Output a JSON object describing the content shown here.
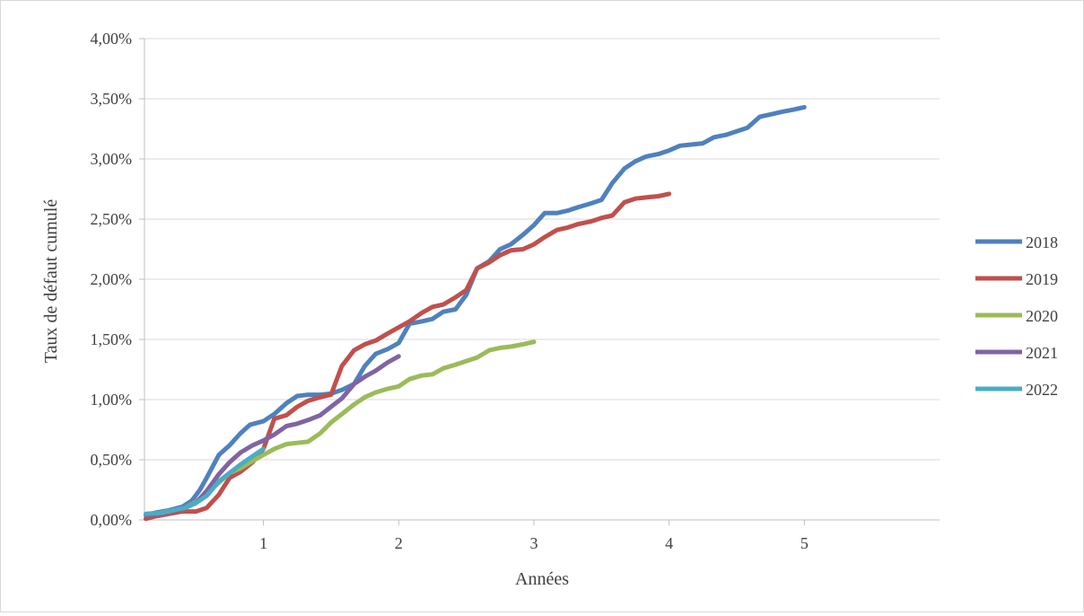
{
  "chart_data": {
    "type": "line",
    "title": "",
    "xlabel": "Années",
    "ylabel": "Taux de défaut cumulé",
    "xlim": [
      0.12,
      6.0
    ],
    "ylim": [
      0,
      0.04
    ],
    "x_ticks": [
      1,
      2,
      3,
      4,
      5
    ],
    "x_tick_labels": [
      "1",
      "2",
      "3",
      "4",
      "5"
    ],
    "y_ticks": [
      0,
      0.005,
      0.01,
      0.015,
      0.02,
      0.025,
      0.03,
      0.035,
      0.04
    ],
    "y_tick_labels": [
      "0,00%",
      "0,50%",
      "1,00%",
      "1,50%",
      "2,00%",
      "2,50%",
      "3,00%",
      "3,50%",
      "4,00%"
    ],
    "grid": "horizontal",
    "legend_position": "right",
    "series": [
      {
        "name": "2018",
        "color": "#4f81bd",
        "points": [
          [
            0.13,
            0.0004
          ],
          [
            0.2,
            0.0006
          ],
          [
            0.3,
            0.0008
          ],
          [
            0.4,
            0.0011
          ],
          [
            0.47,
            0.0016
          ],
          [
            0.53,
            0.0025
          ],
          [
            0.58,
            0.0035
          ],
          [
            0.67,
            0.0054
          ],
          [
            0.75,
            0.0062
          ],
          [
            0.83,
            0.0072
          ],
          [
            0.9,
            0.0079
          ],
          [
            1.0,
            0.0082
          ],
          [
            1.08,
            0.0088
          ],
          [
            1.17,
            0.0097
          ],
          [
            1.25,
            0.0103
          ],
          [
            1.33,
            0.0104
          ],
          [
            1.42,
            0.0104
          ],
          [
            1.5,
            0.0105
          ],
          [
            1.58,
            0.0108
          ],
          [
            1.67,
            0.0113
          ],
          [
            1.75,
            0.0128
          ],
          [
            1.83,
            0.0138
          ],
          [
            1.92,
            0.0142
          ],
          [
            2.0,
            0.0147
          ],
          [
            2.08,
            0.0163
          ],
          [
            2.17,
            0.0165
          ],
          [
            2.25,
            0.0167
          ],
          [
            2.33,
            0.0173
          ],
          [
            2.42,
            0.0175
          ],
          [
            2.5,
            0.0187
          ],
          [
            2.58,
            0.0209
          ],
          [
            2.67,
            0.0215
          ],
          [
            2.75,
            0.0225
          ],
          [
            2.83,
            0.0229
          ],
          [
            2.92,
            0.0237
          ],
          [
            3.0,
            0.0245
          ],
          [
            3.08,
            0.0255
          ],
          [
            3.17,
            0.0255
          ],
          [
            3.25,
            0.0257
          ],
          [
            3.33,
            0.026
          ],
          [
            3.42,
            0.0263
          ],
          [
            3.5,
            0.0266
          ],
          [
            3.58,
            0.028
          ],
          [
            3.67,
            0.0292
          ],
          [
            3.75,
            0.0298
          ],
          [
            3.83,
            0.0302
          ],
          [
            3.92,
            0.0304
          ],
          [
            4.0,
            0.0307
          ],
          [
            4.08,
            0.0311
          ],
          [
            4.17,
            0.0312
          ],
          [
            4.25,
            0.0313
          ],
          [
            4.33,
            0.0318
          ],
          [
            4.42,
            0.032
          ],
          [
            4.5,
            0.0323
          ],
          [
            4.58,
            0.0326
          ],
          [
            4.67,
            0.0335
          ],
          [
            4.75,
            0.0337
          ],
          [
            4.83,
            0.0339
          ],
          [
            4.92,
            0.0341
          ],
          [
            5.0,
            0.0343
          ]
        ]
      },
      {
        "name": "2019",
        "color": "#c0504d",
        "points": [
          [
            0.13,
            0.0001
          ],
          [
            0.2,
            0.0003
          ],
          [
            0.3,
            0.0005
          ],
          [
            0.4,
            0.0007
          ],
          [
            0.5,
            0.0007
          ],
          [
            0.58,
            0.001
          ],
          [
            0.67,
            0.0021
          ],
          [
            0.75,
            0.0035
          ],
          [
            0.83,
            0.004
          ],
          [
            0.92,
            0.0048
          ],
          [
            1.0,
            0.0059
          ],
          [
            1.08,
            0.0084
          ],
          [
            1.17,
            0.0087
          ],
          [
            1.25,
            0.0094
          ],
          [
            1.33,
            0.0099
          ],
          [
            1.42,
            0.0102
          ],
          [
            1.5,
            0.0104
          ],
          [
            1.58,
            0.0128
          ],
          [
            1.67,
            0.0141
          ],
          [
            1.75,
            0.0146
          ],
          [
            1.83,
            0.0149
          ],
          [
            1.92,
            0.0155
          ],
          [
            2.0,
            0.016
          ],
          [
            2.08,
            0.0165
          ],
          [
            2.17,
            0.0172
          ],
          [
            2.25,
            0.0177
          ],
          [
            2.33,
            0.0179
          ],
          [
            2.42,
            0.0185
          ],
          [
            2.5,
            0.0191
          ],
          [
            2.58,
            0.0209
          ],
          [
            2.67,
            0.0214
          ],
          [
            2.75,
            0.022
          ],
          [
            2.83,
            0.0224
          ],
          [
            2.92,
            0.0225
          ],
          [
            3.0,
            0.0229
          ],
          [
            3.08,
            0.0235
          ],
          [
            3.17,
            0.0241
          ],
          [
            3.25,
            0.0243
          ],
          [
            3.33,
            0.0246
          ],
          [
            3.42,
            0.0248
          ],
          [
            3.5,
            0.0251
          ],
          [
            3.58,
            0.0253
          ],
          [
            3.67,
            0.0264
          ],
          [
            3.75,
            0.0267
          ],
          [
            3.83,
            0.0268
          ],
          [
            3.92,
            0.0269
          ],
          [
            4.0,
            0.0271
          ]
        ]
      },
      {
        "name": "2020",
        "color": "#9bbb59",
        "points": [
          [
            0.13,
            0.0004
          ],
          [
            0.25,
            0.0006
          ],
          [
            0.33,
            0.0008
          ],
          [
            0.42,
            0.001
          ],
          [
            0.5,
            0.0015
          ],
          [
            0.58,
            0.0022
          ],
          [
            0.67,
            0.0031
          ],
          [
            0.75,
            0.0039
          ],
          [
            0.83,
            0.0043
          ],
          [
            0.92,
            0.0049
          ],
          [
            1.0,
            0.0054
          ],
          [
            1.08,
            0.0059
          ],
          [
            1.17,
            0.0063
          ],
          [
            1.25,
            0.0064
          ],
          [
            1.33,
            0.0065
          ],
          [
            1.42,
            0.0072
          ],
          [
            1.5,
            0.0081
          ],
          [
            1.58,
            0.0088
          ],
          [
            1.67,
            0.0096
          ],
          [
            1.75,
            0.0102
          ],
          [
            1.83,
            0.0106
          ],
          [
            1.92,
            0.0109
          ],
          [
            2.0,
            0.0111
          ],
          [
            2.08,
            0.0117
          ],
          [
            2.17,
            0.012
          ],
          [
            2.25,
            0.0121
          ],
          [
            2.33,
            0.0126
          ],
          [
            2.42,
            0.0129
          ],
          [
            2.5,
            0.0132
          ],
          [
            2.58,
            0.0135
          ],
          [
            2.67,
            0.0141
          ],
          [
            2.75,
            0.0143
          ],
          [
            2.83,
            0.0144
          ],
          [
            2.92,
            0.0146
          ],
          [
            3.0,
            0.0148
          ]
        ]
      },
      {
        "name": "2021",
        "color": "#8064a2",
        "points": [
          [
            0.13,
            0.0004
          ],
          [
            0.25,
            0.0005
          ],
          [
            0.33,
            0.0008
          ],
          [
            0.42,
            0.001
          ],
          [
            0.5,
            0.0014
          ],
          [
            0.58,
            0.0024
          ],
          [
            0.67,
            0.0038
          ],
          [
            0.75,
            0.0048
          ],
          [
            0.83,
            0.0056
          ],
          [
            0.92,
            0.0062
          ],
          [
            1.0,
            0.0066
          ],
          [
            1.08,
            0.0071
          ],
          [
            1.17,
            0.0078
          ],
          [
            1.25,
            0.008
          ],
          [
            1.33,
            0.0083
          ],
          [
            1.42,
            0.0087
          ],
          [
            1.5,
            0.0094
          ],
          [
            1.58,
            0.0101
          ],
          [
            1.67,
            0.0113
          ],
          [
            1.75,
            0.0119
          ],
          [
            1.83,
            0.0124
          ],
          [
            1.92,
            0.0131
          ],
          [
            2.0,
            0.0136
          ]
        ]
      },
      {
        "name": "2022",
        "color": "#4bacc6",
        "points": [
          [
            0.13,
            0.0005
          ],
          [
            0.25,
            0.0006
          ],
          [
            0.33,
            0.0008
          ],
          [
            0.42,
            0.001
          ],
          [
            0.5,
            0.0014
          ],
          [
            0.58,
            0.002
          ],
          [
            0.67,
            0.0032
          ],
          [
            0.75,
            0.0039
          ],
          [
            0.83,
            0.0046
          ],
          [
            0.92,
            0.0053
          ],
          [
            1.0,
            0.0059
          ]
        ]
      }
    ]
  }
}
